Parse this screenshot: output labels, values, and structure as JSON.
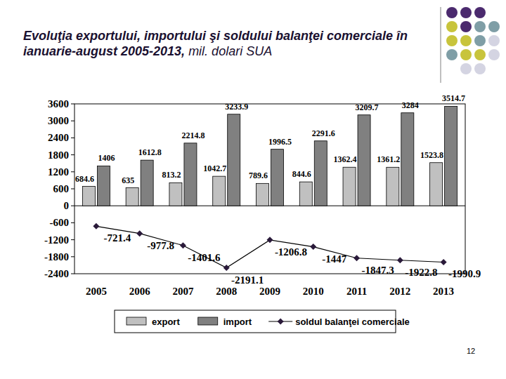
{
  "chart_data": {
    "type": "bar",
    "title": "Evoluţia exportului, importului şi soldului balanţei comerciale în ianuarie-august 2005-2013,",
    "subtitle": "mil. dolari SUA",
    "categories": [
      "2005",
      "2006",
      "2007",
      "2008",
      "2009",
      "2010",
      "2011",
      "2012",
      "2013"
    ],
    "series": [
      {
        "name": "export",
        "type": "bar",
        "color": "#c0c0c0",
        "values": [
          684.6,
          635,
          813.2,
          1042.7,
          789.6,
          844.6,
          1362.4,
          1361.2,
          1523.8
        ]
      },
      {
        "name": "import",
        "type": "bar",
        "color": "#808080",
        "values": [
          1406,
          1612.8,
          2214.8,
          3233.9,
          1996.5,
          2291.6,
          3209.7,
          3284,
          3514.7
        ]
      },
      {
        "name": "soldul balanţei comerciale",
        "type": "line",
        "color": "#000000",
        "marker": "diamond",
        "line_style": "solid",
        "values": [
          -721.4,
          -977.8,
          -1401.6,
          -2191.1,
          -1206.8,
          -1447,
          -1847.3,
          -1922.8,
          -1990.9
        ]
      }
    ],
    "ylim": [
      -2400,
      3600
    ],
    "yticks": [
      -2400,
      -1800,
      -1200,
      -600,
      0,
      600,
      1200,
      1800,
      2400,
      3000,
      3600
    ],
    "grid": false,
    "legend": "bottom",
    "data_labels": true
  },
  "page": {
    "number": 12
  }
}
